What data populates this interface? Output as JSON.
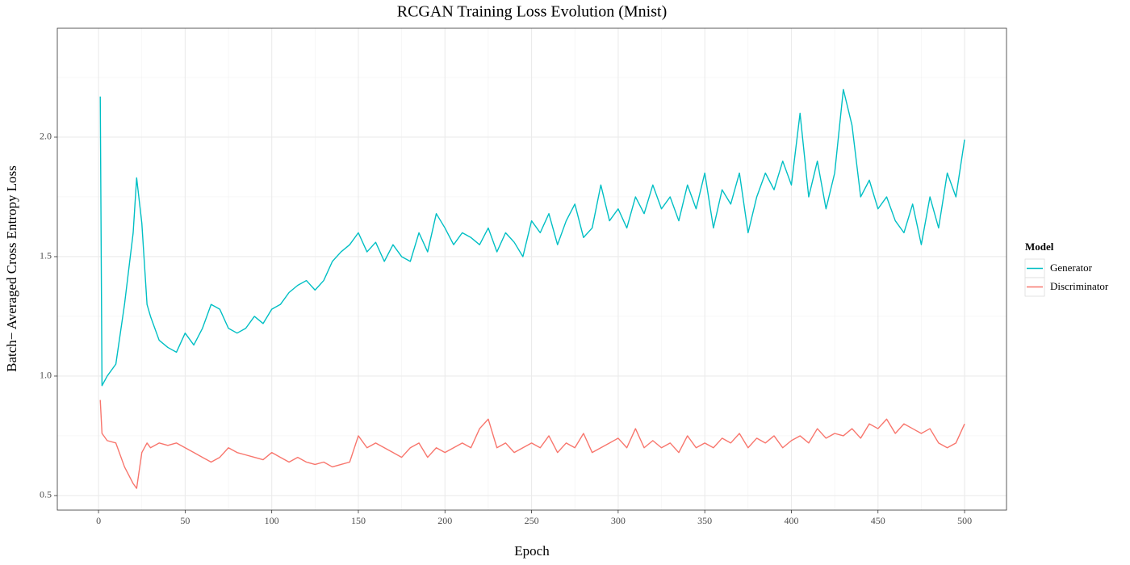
{
  "chart_data": {
    "type": "line",
    "title": "RCGAN Training Loss Evolution (Mnist)",
    "x_label": "Epoch",
    "y_label": "Batch− Averaged Cross Entropy Loss",
    "legend_title": "Model",
    "legend_position": "right",
    "grid": true,
    "xlim": [
      -23.8,
      524.2
    ],
    "ylim": [
      0.439,
      2.456
    ],
    "xticks": [
      0,
      50,
      100,
      150,
      200,
      250,
      300,
      350,
      400,
      450,
      500
    ],
    "yticks": [
      0.5,
      {
        "value": 1,
        "label": "1.0"
      },
      1.5,
      {
        "value": 2,
        "label": "2.0"
      }
    ],
    "x": [
      1,
      2,
      5,
      10,
      15,
      20,
      22,
      25,
      28,
      30,
      35,
      40,
      45,
      50,
      55,
      60,
      65,
      70,
      75,
      80,
      85,
      90,
      95,
      100,
      105,
      110,
      115,
      120,
      125,
      130,
      135,
      140,
      145,
      150,
      155,
      160,
      165,
      170,
      175,
      180,
      185,
      190,
      195,
      200,
      205,
      210,
      215,
      220,
      225,
      230,
      235,
      240,
      245,
      250,
      255,
      260,
      265,
      270,
      275,
      280,
      285,
      290,
      295,
      300,
      305,
      310,
      315,
      320,
      325,
      330,
      335,
      340,
      345,
      350,
      355,
      360,
      365,
      370,
      375,
      380,
      385,
      390,
      395,
      400,
      405,
      410,
      415,
      420,
      425,
      430,
      435,
      440,
      445,
      450,
      455,
      460,
      465,
      470,
      475,
      480,
      485,
      490,
      495,
      500
    ],
    "series": [
      {
        "name": "Generator",
        "color": "#00BFC4",
        "values": [
          2.17,
          0.96,
          1.0,
          1.05,
          1.3,
          1.6,
          1.83,
          1.64,
          1.3,
          1.25,
          1.15,
          1.12,
          1.1,
          1.18,
          1.13,
          1.2,
          1.3,
          1.28,
          1.2,
          1.18,
          1.2,
          1.25,
          1.22,
          1.28,
          1.3,
          1.35,
          1.38,
          1.4,
          1.36,
          1.4,
          1.48,
          1.52,
          1.55,
          1.6,
          1.52,
          1.56,
          1.48,
          1.55,
          1.5,
          1.48,
          1.6,
          1.52,
          1.68,
          1.62,
          1.55,
          1.6,
          1.58,
          1.55,
          1.62,
          1.52,
          1.6,
          1.56,
          1.5,
          1.65,
          1.6,
          1.68,
          1.55,
          1.65,
          1.72,
          1.58,
          1.62,
          1.8,
          1.65,
          1.7,
          1.62,
          1.75,
          1.68,
          1.8,
          1.7,
          1.75,
          1.65,
          1.8,
          1.7,
          1.85,
          1.62,
          1.78,
          1.72,
          1.85,
          1.6,
          1.75,
          1.85,
          1.78,
          1.9,
          1.8,
          2.1,
          1.75,
          1.9,
          1.7,
          1.85,
          2.2,
          2.05,
          1.75,
          1.82,
          1.7,
          1.75,
          1.65,
          1.6,
          1.72,
          1.55,
          1.75,
          1.62,
          1.85,
          1.75,
          1.99
        ]
      },
      {
        "name": "Discriminator",
        "color": "#F8766D",
        "values": [
          0.9,
          0.76,
          0.73,
          0.72,
          0.62,
          0.55,
          0.53,
          0.68,
          0.72,
          0.7,
          0.72,
          0.71,
          0.72,
          0.7,
          0.68,
          0.66,
          0.64,
          0.66,
          0.7,
          0.68,
          0.67,
          0.66,
          0.65,
          0.68,
          0.66,
          0.64,
          0.66,
          0.64,
          0.63,
          0.64,
          0.62,
          0.63,
          0.64,
          0.75,
          0.7,
          0.72,
          0.7,
          0.68,
          0.66,
          0.7,
          0.72,
          0.66,
          0.7,
          0.68,
          0.7,
          0.72,
          0.7,
          0.78,
          0.82,
          0.7,
          0.72,
          0.68,
          0.7,
          0.72,
          0.7,
          0.75,
          0.68,
          0.72,
          0.7,
          0.76,
          0.68,
          0.7,
          0.72,
          0.74,
          0.7,
          0.78,
          0.7,
          0.73,
          0.7,
          0.72,
          0.68,
          0.75,
          0.7,
          0.72,
          0.7,
          0.74,
          0.72,
          0.76,
          0.7,
          0.74,
          0.72,
          0.75,
          0.7,
          0.73,
          0.75,
          0.72,
          0.78,
          0.74,
          0.76,
          0.75,
          0.78,
          0.74,
          0.8,
          0.78,
          0.82,
          0.76,
          0.8,
          0.78,
          0.76,
          0.78,
          0.72,
          0.7,
          0.72,
          0.8
        ]
      }
    ]
  }
}
